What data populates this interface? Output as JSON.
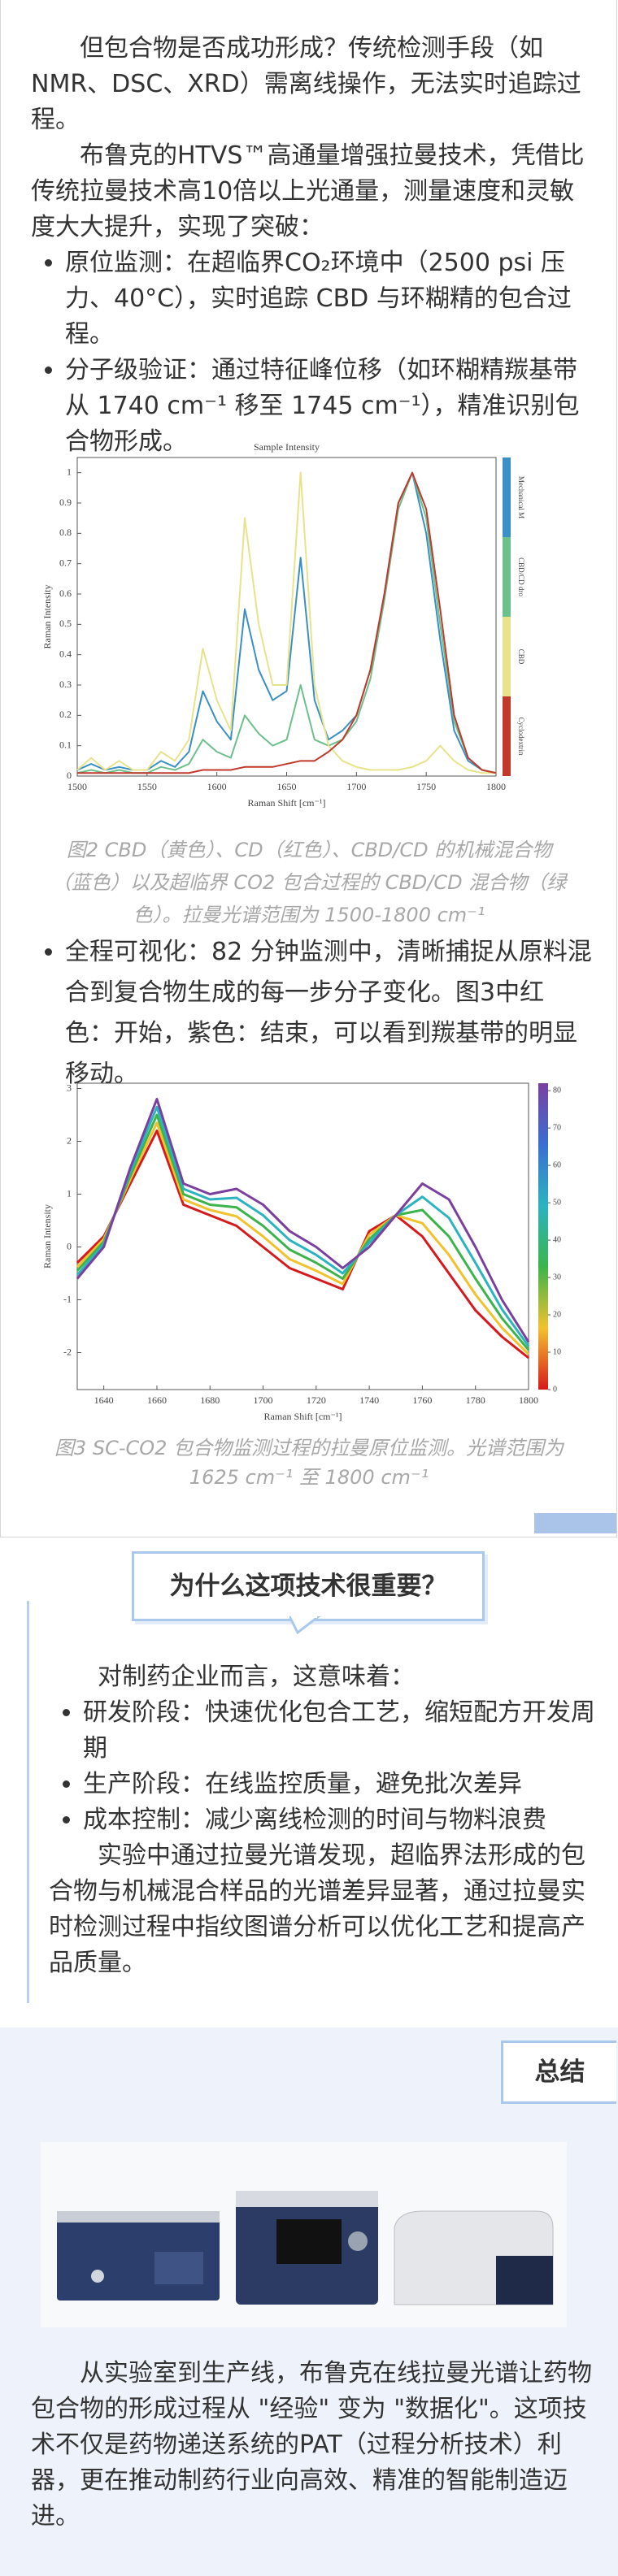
{
  "intro": {
    "paragraphs": [
      "但包合物是否成功形成？传统检测手段（如NMR、DSC、XRD）需离线操作，无法实时追踪过程。",
      "布鲁克的HTVS™高通量增强拉曼技术，凭借比传统拉曼技术高10倍以上光通量，测量速度和灵敏度大大提升，实现了突破："
    ],
    "bullets": [
      "原位监测：在超临界CO₂环境中（2500 psi 压力、40°C），实时追踪 CBD 与环糊精的包合过程。",
      "分子级验证：通过特征峰位移（如环糊精羰基带从 1740 cm⁻¹ 移至 1745 cm⁻¹），精准识别包合物形成。"
    ]
  },
  "chart_data": [
    {
      "type": "line",
      "title": "Sample Intensity",
      "x_label": "Raman Shift [cm⁻¹]",
      "y_label": "Raman Intensity",
      "x": [
        1500,
        1510,
        1520,
        1530,
        1540,
        1550,
        1560,
        1570,
        1580,
        1590,
        1600,
        1610,
        1620,
        1630,
        1640,
        1650,
        1660,
        1670,
        1680,
        1690,
        1700,
        1710,
        1720,
        1730,
        1740,
        1750,
        1760,
        1770,
        1780,
        1790,
        1800
      ],
      "series": [
        {
          "name": "Mechanical M",
          "color": "#3a8fc4",
          "values": [
            0.02,
            0.04,
            0.02,
            0.03,
            0.02,
            0.02,
            0.05,
            0.03,
            0.08,
            0.28,
            0.18,
            0.12,
            0.55,
            0.35,
            0.25,
            0.28,
            0.72,
            0.25,
            0.12,
            0.15,
            0.2,
            0.35,
            0.6,
            0.9,
            1.0,
            0.8,
            0.45,
            0.15,
            0.05,
            0.02,
            0.01
          ]
        },
        {
          "name": "CBD/CD dro",
          "color": "#6dbf8c",
          "values": [
            0.01,
            0.02,
            0.01,
            0.02,
            0.01,
            0.01,
            0.03,
            0.02,
            0.04,
            0.12,
            0.08,
            0.06,
            0.2,
            0.14,
            0.1,
            0.12,
            0.3,
            0.12,
            0.1,
            0.12,
            0.18,
            0.32,
            0.58,
            0.88,
            1.0,
            0.85,
            0.5,
            0.18,
            0.06,
            0.02,
            0.01
          ]
        },
        {
          "name": "CBD",
          "color": "#e8e38a",
          "values": [
            0.02,
            0.06,
            0.02,
            0.05,
            0.02,
            0.02,
            0.08,
            0.05,
            0.12,
            0.42,
            0.25,
            0.15,
            0.85,
            0.5,
            0.3,
            0.3,
            1.0,
            0.3,
            0.1,
            0.05,
            0.03,
            0.02,
            0.02,
            0.02,
            0.03,
            0.05,
            0.1,
            0.05,
            0.02,
            0.01,
            0.01
          ]
        },
        {
          "name": "Cyclodextrin",
          "color": "#c0392b",
          "values": [
            0.01,
            0.01,
            0.01,
            0.01,
            0.01,
            0.01,
            0.01,
            0.01,
            0.01,
            0.02,
            0.02,
            0.02,
            0.03,
            0.03,
            0.03,
            0.04,
            0.05,
            0.05,
            0.08,
            0.12,
            0.2,
            0.35,
            0.6,
            0.9,
            1.0,
            0.88,
            0.55,
            0.2,
            0.06,
            0.02,
            0.01
          ]
        }
      ],
      "xlim": [
        1500,
        1800
      ],
      "ylim": [
        0,
        1.05
      ],
      "xticks": [
        1500,
        1550,
        1600,
        1650,
        1700,
        1750,
        1800
      ],
      "yticks": [
        0,
        0.1,
        0.2,
        0.3,
        0.4,
        0.5,
        0.6,
        0.7,
        0.8,
        0.9,
        1
      ],
      "legend": "right"
    },
    {
      "type": "line",
      "x_label": "Raman Shift [cm⁻¹]",
      "y_label": "Raman Intensity",
      "x": [
        1630,
        1640,
        1650,
        1660,
        1670,
        1680,
        1690,
        1700,
        1710,
        1720,
        1730,
        1740,
        1750,
        1760,
        1770,
        1780,
        1790,
        1800
      ],
      "series": [
        {
          "color": "#d7191c",
          "values": [
            -0.3,
            0.2,
            1.2,
            2.2,
            0.8,
            0.6,
            0.4,
            0.0,
            -0.4,
            -0.6,
            -0.8,
            0.3,
            0.6,
            0.2,
            -0.5,
            -1.2,
            -1.7,
            -2.1
          ]
        },
        {
          "color": "#f2c12e",
          "values": [
            -0.38,
            0.15,
            1.28,
            2.35,
            0.9,
            0.7,
            0.58,
            0.2,
            -0.23,
            -0.45,
            -0.7,
            0.23,
            0.6,
            0.45,
            -0.15,
            -0.9,
            -1.53,
            -2.03
          ]
        },
        {
          "color": "#3cb44b",
          "values": [
            -0.45,
            0.1,
            1.35,
            2.5,
            1.0,
            0.8,
            0.75,
            0.4,
            -0.05,
            -0.3,
            -0.6,
            0.15,
            0.6,
            0.7,
            0.2,
            -0.6,
            -1.35,
            -1.95
          ]
        },
        {
          "color": "#2bb3c0",
          "values": [
            -0.53,
            0.05,
            1.43,
            2.65,
            1.1,
            0.9,
            0.93,
            0.6,
            0.13,
            -0.15,
            -0.5,
            0.08,
            0.6,
            0.95,
            0.55,
            -0.3,
            -1.18,
            -1.88
          ]
        },
        {
          "color": "#7b3fa0",
          "values": [
            -0.6,
            0.0,
            1.5,
            2.8,
            1.2,
            1.0,
            1.1,
            0.8,
            0.3,
            0.0,
            -0.4,
            0.0,
            0.6,
            1.2,
            0.9,
            0.0,
            -1.0,
            -1.8
          ]
        }
      ],
      "xlim": [
        1630,
        1800
      ],
      "ylim": [
        -2.7,
        3.1
      ],
      "xticks": [
        1640,
        1660,
        1680,
        1700,
        1720,
        1740,
        1760,
        1780,
        1800
      ],
      "yticks": [
        -2,
        -1,
        0,
        1,
        2,
        3
      ],
      "colorbar": {
        "lim": [
          0,
          82
        ],
        "ticks": [
          0,
          10,
          20,
          30,
          40,
          50,
          60,
          70,
          80
        ],
        "colors": [
          "#d7191c",
          "#f2c12e",
          "#3cb44b",
          "#2bb3c0",
          "#3a6fd0",
          "#7b3fa0"
        ]
      }
    }
  ],
  "figure_captions": [
    "图2 CBD（黄色）、CD（红色）、CBD/CD 的机械混合物（蓝色）以及超临界 CO2 包合过程的 CBD/CD 混合物（绿色）。拉曼光谱范围为 1500-1800 cm⁻¹",
    "图3 SC-CO2 包合物监测过程的拉曼原位监测。光谱范围为 1625 cm⁻¹ 至 1800 cm⁻¹"
  ],
  "visual_bullet": "全程可视化：82 分钟监测中，清晰捕捉从原料混合到复合物生成的每一步分子变化。图3中红色：开始，紫色：结束，可以看到羰基带的明显移动。",
  "importance": {
    "heading": "为什么这项技术很重要？",
    "intro": "对制药企业而言，这意味着：",
    "bullets": [
      "研发阶段：快速优化包合工艺，缩短配方开发周期",
      "生产阶段：在线监控质量，避免批次差异",
      "成本控制：减少离线检测的时间与物料浪费"
    ],
    "paragraph": "实验中通过拉曼光谱发现，超临界法形成的包合物与机械混合样品的光谱差异显著，通过拉曼实时检测过程中指纹图谱分析可以优化工艺和提高产品质量。"
  },
  "summary": {
    "heading": "总结",
    "paragraph": "从实验室到生产线，布鲁克在线拉曼光谱让药物包合物的形成过程从 \"经验\" 变为 \"数据化\"。这项技术不仅是药物递送系统的PAT（过程分析技术）利器，更在推动制药行业向高效、精准的智能制造迈进。"
  }
}
